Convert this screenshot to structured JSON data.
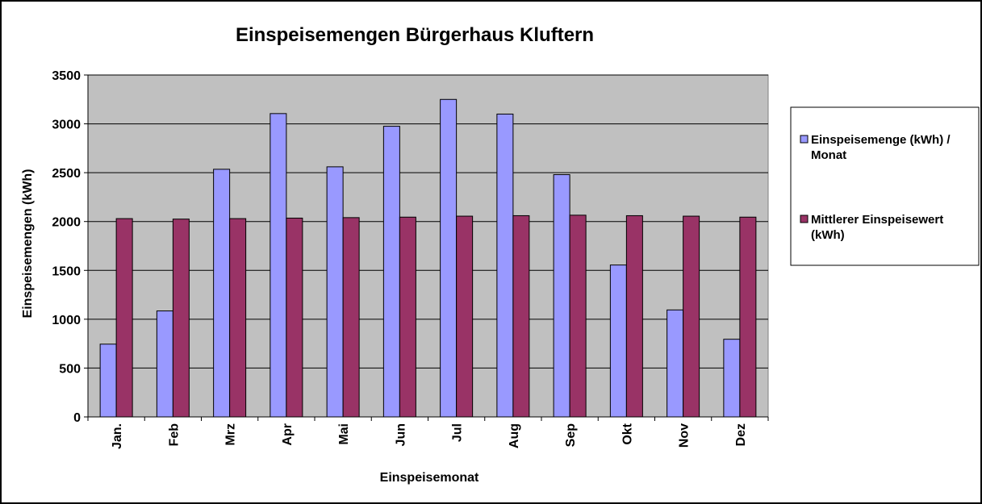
{
  "chart_data": {
    "type": "bar",
    "title": "Einspeisemengen Bürgerhaus Kluftern",
    "xlabel": "Einspeisemonat",
    "ylabel": "Einspeisemengen (kWh)",
    "ylim": [
      0,
      3500
    ],
    "yticks": [
      0,
      500,
      1000,
      1500,
      2000,
      2500,
      3000,
      3500
    ],
    "grid": true,
    "legend_position": "right",
    "plot_background": "#C0C0C0",
    "categories": [
      "Jan.",
      "Feb",
      "Mrz",
      "Apr",
      "Mai",
      "Jun",
      "Jul",
      "Aug",
      "Sep",
      "Okt",
      "Nov",
      "Dez"
    ],
    "series": [
      {
        "name": "Einspeisemenge (kWh) / Monat",
        "legend_lines": [
          "Einspeisemenge (kWh) /",
          "Monat"
        ],
        "color": "#9999FF",
        "values": [
          745,
          1085,
          2535,
          3105,
          2560,
          2975,
          3250,
          3100,
          2480,
          1555,
          1095,
          795
        ]
      },
      {
        "name": "Mittlerer Einspeisewert (kWh)",
        "legend_lines": [
          "Mittlerer Einspeisewert",
          "(kWh)"
        ],
        "color": "#993366",
        "values": [
          2030,
          2025,
          2030,
          2035,
          2040,
          2045,
          2055,
          2060,
          2065,
          2060,
          2055,
          2045
        ]
      }
    ]
  }
}
